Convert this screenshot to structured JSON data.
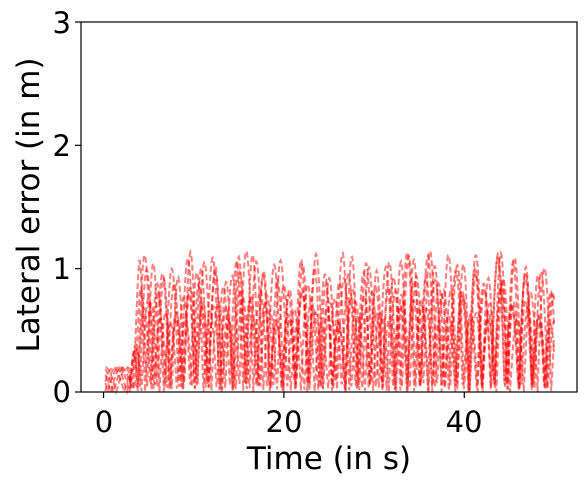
{
  "chart_data": {
    "type": "line",
    "title": "",
    "xlabel": "Time (in s)",
    "ylabel": "Lateral error (in m)",
    "xlim": [
      -2.5,
      52.5
    ],
    "ylim": [
      0,
      3
    ],
    "x_ticks": [
      0,
      20,
      40
    ],
    "x_tick_labels": [
      "0",
      "20",
      "40"
    ],
    "y_ticks": [
      0,
      1,
      2,
      3
    ],
    "y_tick_labels": [
      "0",
      "1",
      "2",
      "3"
    ],
    "grid": false,
    "legend": "none",
    "line_style": "dashed",
    "series_color": "#ff0000",
    "series_opacity": 0.5,
    "series_count": 6,
    "time_range": [
      0.2,
      50
    ],
    "initial_segment": {
      "x_range": [
        0.2,
        3
      ],
      "peak": 0.2
    },
    "max_peak": 1.35
  }
}
